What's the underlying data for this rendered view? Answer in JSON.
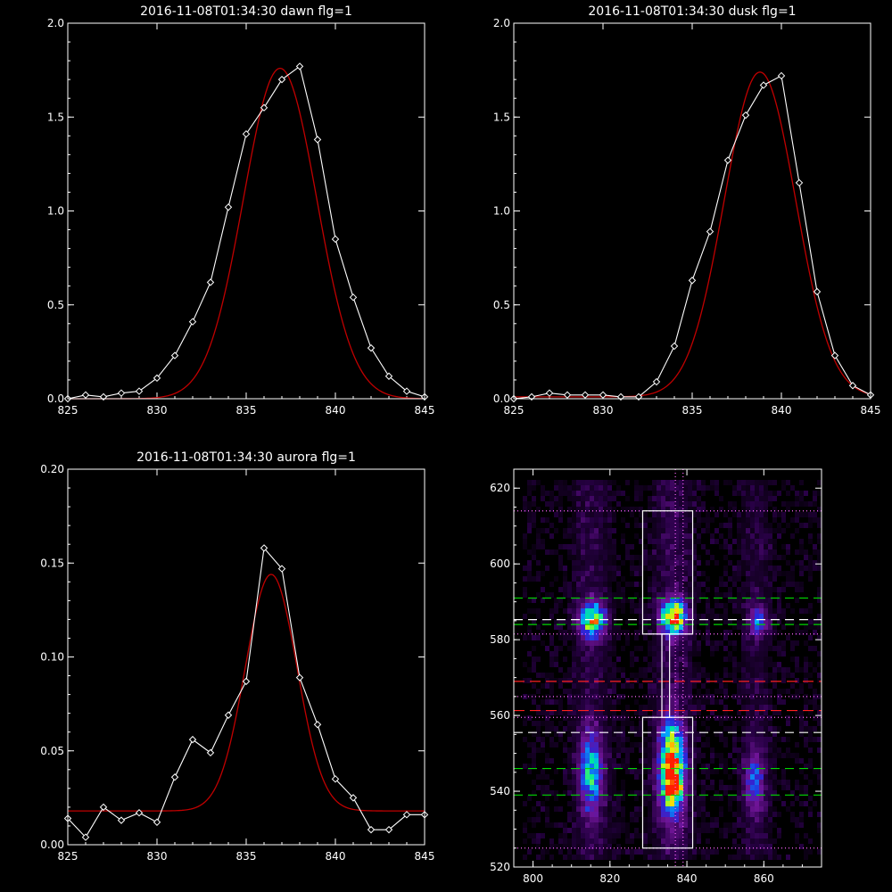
{
  "chart_data": [
    {
      "type": "line",
      "title": "2016-11-08T01:34:30 dawn flg=1",
      "xlim": [
        825,
        845
      ],
      "ylim": [
        0,
        2.0
      ],
      "xticks": [
        "825",
        "830",
        "835",
        "840",
        "845"
      ],
      "yticks": [
        "0.0",
        "0.5",
        "1.0",
        "1.5",
        "2.0"
      ],
      "observed": {
        "x": [
          825,
          826,
          827,
          828,
          829,
          830,
          831,
          832,
          833,
          834,
          835,
          836,
          837,
          838,
          839,
          840,
          841,
          842,
          843,
          844,
          845
        ],
        "y": [
          0.0,
          0.02,
          0.01,
          0.03,
          0.04,
          0.11,
          0.23,
          0.41,
          0.62,
          1.02,
          1.41,
          1.55,
          1.7,
          1.77,
          1.38,
          0.85,
          0.54,
          0.27,
          0.12,
          0.04,
          0.01
        ]
      },
      "fit": {
        "type": "gaussian",
        "amp": 1.76,
        "center": 836.9,
        "sigma": 2.05,
        "offset": 0.0
      },
      "colors": {
        "observed": "#ffffff",
        "fit": "#c00000"
      }
    },
    {
      "type": "line",
      "title": "2016-11-08T01:34:30 dusk flg=1",
      "xlim": [
        825,
        845
      ],
      "ylim": [
        0,
        2.0
      ],
      "xticks": [
        "825",
        "830",
        "835",
        "840",
        "845"
      ],
      "yticks": [
        "0.0",
        "0.5",
        "1.0",
        "1.5",
        "2.0"
      ],
      "observed": {
        "x": [
          825,
          826,
          827,
          828,
          829,
          830,
          831,
          832,
          833,
          834,
          835,
          836,
          837,
          838,
          839,
          840,
          841,
          842,
          843,
          844,
          845
        ],
        "y": [
          0.0,
          0.01,
          0.03,
          0.02,
          0.02,
          0.02,
          0.01,
          0.01,
          0.09,
          0.28,
          0.63,
          0.89,
          1.27,
          1.51,
          1.67,
          1.72,
          1.15,
          0.57,
          0.23,
          0.07,
          0.02
        ]
      },
      "fit": {
        "type": "gaussian",
        "amp": 1.73,
        "center": 838.8,
        "sigma": 2.0,
        "offset": 0.01
      },
      "colors": {
        "observed": "#ffffff",
        "fit": "#c00000"
      }
    },
    {
      "type": "line",
      "title": "2016-11-08T01:34:30 aurora flg=1",
      "xlim": [
        825,
        845
      ],
      "ylim": [
        0,
        0.2
      ],
      "xticks": [
        "825",
        "830",
        "835",
        "840",
        "845"
      ],
      "yticks": [
        "0.00",
        "0.05",
        "0.10",
        "0.15",
        "0.20"
      ],
      "observed": {
        "x": [
          825,
          826,
          827,
          828,
          829,
          830,
          831,
          832,
          833,
          834,
          835,
          836,
          837,
          838,
          839,
          840,
          841,
          842,
          843,
          844,
          845
        ],
        "y": [
          0.014,
          0.004,
          0.02,
          0.013,
          0.017,
          0.012,
          0.036,
          0.056,
          0.049,
          0.069,
          0.087,
          0.158,
          0.147,
          0.089,
          0.064,
          0.035,
          0.025,
          0.008,
          0.008,
          0.016,
          0.016
        ]
      },
      "fit": {
        "type": "gaussian",
        "amp": 0.126,
        "center": 836.4,
        "sigma": 1.45,
        "offset": 0.018
      },
      "colors": {
        "observed": "#ffffff",
        "fit": "#c00000"
      }
    },
    {
      "type": "heatmap",
      "xlim": [
        795,
        875
      ],
      "ylim": [
        520,
        625
      ],
      "xticks": [
        "800",
        "820",
        "840",
        "860"
      ],
      "yticks": [
        "520",
        "540",
        "560",
        "580",
        "600",
        "620"
      ],
      "blobs": [
        {
          "x": 815.5,
          "y": 585,
          "sx": 2.3,
          "sy": 3.2,
          "amp": 0.75
        },
        {
          "x": 836.5,
          "y": 586,
          "sx": 2.2,
          "sy": 3.0,
          "amp": 1.0
        },
        {
          "x": 858.5,
          "y": 585,
          "sx": 1.6,
          "sy": 2.8,
          "amp": 0.4
        },
        {
          "x": 815,
          "y": 545,
          "sx": 2.0,
          "sy": 7.0,
          "amp": 0.55
        },
        {
          "x": 836,
          "y": 546,
          "sx": 2.2,
          "sy": 8.0,
          "amp": 0.95
        },
        {
          "x": 837,
          "y": 540,
          "sx": 1.4,
          "sy": 2.5,
          "amp": 0.35
        },
        {
          "x": 857.5,
          "y": 543,
          "sx": 1.8,
          "sy": 6.0,
          "amp": 0.35
        }
      ],
      "boxes": [
        {
          "x0": 828.5,
          "x1": 841.5,
          "y0": 581.5,
          "y1": 614
        },
        {
          "x0": 828.5,
          "x1": 841.5,
          "y0": 525,
          "y1": 559.5
        },
        {
          "x0": 833.5,
          "x1": 835.5,
          "y0": 559.5,
          "y1": 581.5
        }
      ],
      "hlines": [
        {
          "y": 614,
          "color": "#ff66ff",
          "dash": "1,3"
        },
        {
          "y": 591,
          "color": "#00d800",
          "dash": "10,6"
        },
        {
          "y": 585.3,
          "color": "#ffffff",
          "dash": "10,6"
        },
        {
          "y": 584,
          "color": "#00d800",
          "dash": "10,6"
        },
        {
          "y": 581.5,
          "color": "#ff66ff",
          "dash": "1,3"
        },
        {
          "y": 569,
          "color": "#ff2020",
          "dash": "12,6"
        },
        {
          "y": 565,
          "color": "#ff66ff",
          "dash": "1,3"
        },
        {
          "y": 561.3,
          "color": "#ff2020",
          "dash": "12,6"
        },
        {
          "y": 559.5,
          "color": "#ff66ff",
          "dash": "1,3"
        },
        {
          "y": 555.5,
          "color": "#ffffff",
          "dash": "10,6"
        },
        {
          "y": 546,
          "color": "#00d800",
          "dash": "10,6"
        },
        {
          "y": 539,
          "color": "#00d800",
          "dash": "10,6"
        },
        {
          "y": 525,
          "color": "#ff66ff",
          "dash": "1,3"
        }
      ],
      "vlines": [
        {
          "x": 837,
          "color": "#ff66ff",
          "dash": "1,3"
        },
        {
          "x": 839,
          "color": "#ff66ff",
          "dash": "1,3"
        }
      ]
    }
  ]
}
